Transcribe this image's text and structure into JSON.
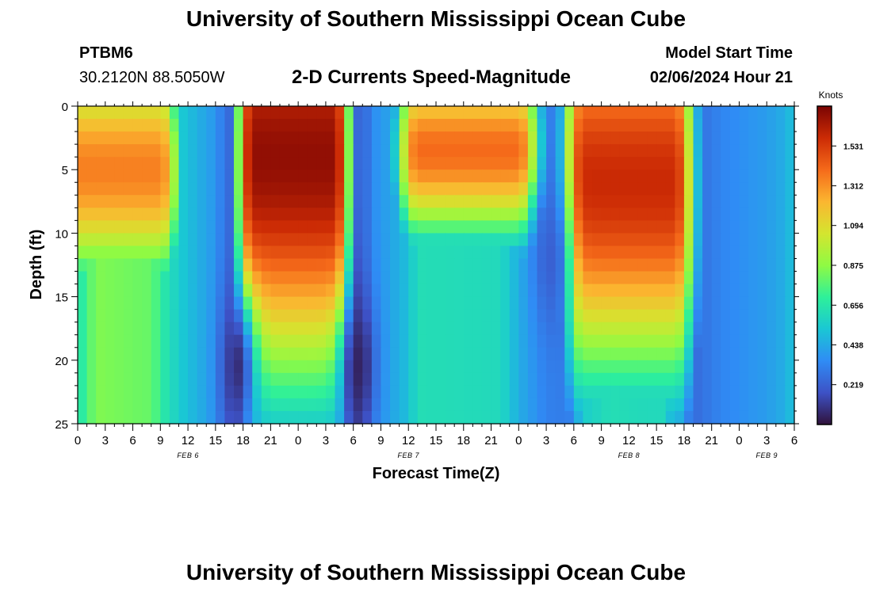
{
  "page": {
    "title": "University of Southern Mississippi Ocean Cube",
    "footer_title": "University of Southern Mississippi Ocean Cube",
    "station_id": "PTBM6",
    "coordinates": "30.2120N  88.5050W",
    "model_start_label": "Model Start Time",
    "model_start_value": "02/06/2024 Hour 21"
  },
  "chart_data": {
    "type": "heatmap",
    "title": "2-D Currents Speed-Magnitude",
    "xlabel": "Forecast Time(Z)",
    "ylabel": "Depth (ft)",
    "x_ticks": [
      "0",
      "3",
      "6",
      "9",
      "12",
      "15",
      "18",
      "21",
      "0",
      "3",
      "6",
      "9",
      "12",
      "15",
      "18",
      "21",
      "0",
      "3",
      "6",
      "9",
      "12",
      "15",
      "18",
      "21",
      "0",
      "3",
      "6"
    ],
    "x_range_hours": [
      0,
      78
    ],
    "date_labels": [
      {
        "text": "FEB 6",
        "hour": 12
      },
      {
        "text": "FEB 7",
        "hour": 36
      },
      {
        "text": "FEB 8",
        "hour": 60
      },
      {
        "text": "FEB 9",
        "hour": 75
      }
    ],
    "y_ticks": [
      "0",
      "5",
      "10",
      "15",
      "20",
      "25"
    ],
    "ylim": [
      0,
      25
    ],
    "colorbar": {
      "unit": "Knots",
      "ticks": [
        "1.531",
        "1.312",
        "1.094",
        "0.875",
        "0.656",
        "0.438",
        "0.219"
      ],
      "tick_values": [
        1.531,
        1.312,
        1.094,
        0.875,
        0.656,
        0.438,
        0.219
      ],
      "range": [
        0.0,
        1.75
      ]
    },
    "grid_size": {
      "cols": 78,
      "rows": 25
    },
    "speed_model": {
      "note": "speed (knots) = max(base(t), core_i(t, depth)); approximated from the image",
      "base": [
        {
          "hour": 0,
          "v": 0.55
        },
        {
          "hour": 0.5,
          "v": 0.68
        },
        {
          "hour": 2,
          "v": 0.85
        },
        {
          "hour": 8,
          "v": 0.8
        },
        {
          "hour": 9.5,
          "v": 0.65
        },
        {
          "hour": 11,
          "v": 0.55
        },
        {
          "hour": 12,
          "v": 0.5
        },
        {
          "hour": 14.5,
          "v": 0.4
        },
        {
          "hour": 16.5,
          "v": 0.25
        },
        {
          "hour": 18,
          "v": 0.2
        },
        {
          "hour": 19.5,
          "v": 0.25
        },
        {
          "hour": 21,
          "v": 0.55
        },
        {
          "hour": 28,
          "v": 0.55
        },
        {
          "hour": 29,
          "v": 0.42
        },
        {
          "hour": 30,
          "v": 0.2
        },
        {
          "hour": 31,
          "v": 0.2
        },
        {
          "hour": 32,
          "v": 0.35
        },
        {
          "hour": 34,
          "v": 0.42
        },
        {
          "hour": 36,
          "v": 0.5
        },
        {
          "hour": 37,
          "v": 0.62
        },
        {
          "hour": 46,
          "v": 0.6
        },
        {
          "hour": 48,
          "v": 0.45
        },
        {
          "hour": 51,
          "v": 0.32
        },
        {
          "hour": 53.5,
          "v": 0.3
        },
        {
          "hour": 55,
          "v": 0.55
        },
        {
          "hour": 58,
          "v": 0.62
        },
        {
          "hour": 62,
          "v": 0.6
        },
        {
          "hour": 64,
          "v": 0.6
        },
        {
          "hour": 65,
          "v": 0.4
        },
        {
          "hour": 67,
          "v": 0.25
        },
        {
          "hour": 70,
          "v": 0.33
        },
        {
          "hour": 75,
          "v": 0.4
        },
        {
          "hour": 77,
          "v": 0.45
        },
        {
          "hour": 78,
          "v": 0.52
        }
      ],
      "cores": [
        {
          "t0": 0.5,
          "t1": 9,
          "peak": 1.35,
          "depth": 5,
          "tw": 3.8,
          "dw": 7
        },
        {
          "t0": 19,
          "t1": 28,
          "peak": 1.7,
          "depth": 4,
          "tw": 2.8,
          "dw": 14
        },
        {
          "t0": 37,
          "t1": 48,
          "peak": 1.4,
          "depth": 3.5,
          "tw": 4,
          "dw": 5.5
        },
        {
          "t0": 55,
          "t1": 65,
          "peak": 1.58,
          "depth": 6,
          "tw": 3.6,
          "dw": 12
        }
      ],
      "minima": [
        {
          "hour": 17.5,
          "depth": 20.5,
          "v": 0.08
        },
        {
          "hour": 30.5,
          "depth": 20.5,
          "v": 0.05
        },
        {
          "hour": 51.5,
          "depth": 12,
          "v": 0.22
        }
      ]
    }
  }
}
